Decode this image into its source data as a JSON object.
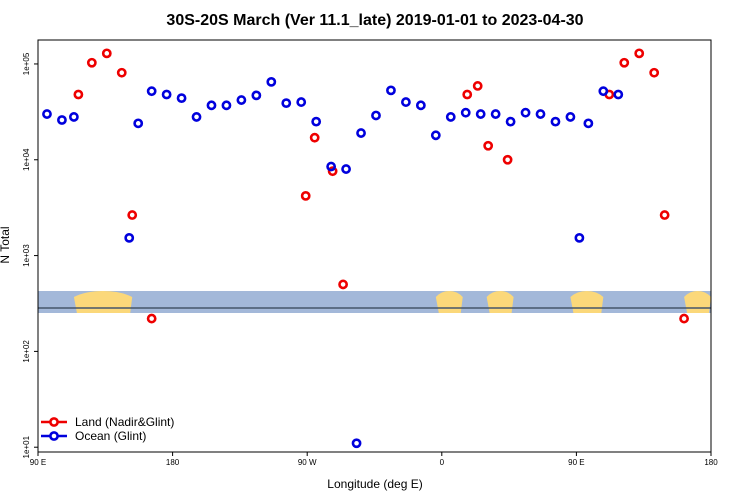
{
  "chart_data": {
    "type": "scatter",
    "title": "30S-20S March (Ver 11.1_late)   2019-01-01 to 2023-04-30",
    "xlabel": "Longitude (deg E)",
    "ylabel": "N Total",
    "x_scale": "longitude, 90E to 180 wrapping past 360",
    "y_scale": "log",
    "xlim": [
      90,
      540
    ],
    "ylim_log10": [
      0.95,
      5.25
    ],
    "x_ticks": [
      {
        "value": 90,
        "label": "90 E"
      },
      {
        "value": 180,
        "label": "180"
      },
      {
        "value": 270,
        "label": "90 W"
      },
      {
        "value": 360,
        "label": "0"
      },
      {
        "value": 450,
        "label": "90 E"
      },
      {
        "value": 540,
        "label": "180"
      }
    ],
    "y_ticks": [
      {
        "value": 10,
        "label": "1e+01"
      },
      {
        "value": 100,
        "label": "1e+02"
      },
      {
        "value": 1000,
        "label": "1e+03"
      },
      {
        "value": 10000,
        "label": "1e+04"
      },
      {
        "value": 100000,
        "label": "1e+05"
      }
    ],
    "colors": {
      "land": "#ee0000",
      "ocean": "#0000dd"
    },
    "legend": {
      "position": "bottom-left",
      "entries": [
        {
          "label": "Land (Nadir&Glint)",
          "series": "land"
        },
        {
          "label": "Ocean (Glint)",
          "series": "ocean"
        }
      ]
    },
    "series": [
      {
        "name": "Land (Nadir&Glint)",
        "key": "land",
        "points": [
          {
            "x": 117,
            "y": 48000
          },
          {
            "x": 126,
            "y": 103000
          },
          {
            "x": 136,
            "y": 129000
          },
          {
            "x": 146,
            "y": 81000
          },
          {
            "x": 153,
            "y": 2650
          },
          {
            "x": 166,
            "y": 220
          },
          {
            "x": 269,
            "y": 4200
          },
          {
            "x": 275,
            "y": 17000
          },
          {
            "x": 287,
            "y": 7600
          },
          {
            "x": 294,
            "y": 500
          },
          {
            "x": 377,
            "y": 48000
          },
          {
            "x": 384,
            "y": 59000
          },
          {
            "x": 391,
            "y": 14000
          },
          {
            "x": 404,
            "y": 10000
          },
          {
            "x": 472,
            "y": 48000
          },
          {
            "x": 482,
            "y": 103000
          },
          {
            "x": 492,
            "y": 129000
          },
          {
            "x": 502,
            "y": 81000
          },
          {
            "x": 509,
            "y": 2650
          },
          {
            "x": 522,
            "y": 220
          }
        ]
      },
      {
        "name": "Ocean (Glint)",
        "key": "ocean",
        "points": [
          {
            "x": 96,
            "y": 30000
          },
          {
            "x": 106,
            "y": 26000
          },
          {
            "x": 114,
            "y": 28000
          },
          {
            "x": 151,
            "y": 1530
          },
          {
            "x": 157,
            "y": 24000
          },
          {
            "x": 166,
            "y": 52000
          },
          {
            "x": 176,
            "y": 48000
          },
          {
            "x": 186,
            "y": 44000
          },
          {
            "x": 196,
            "y": 28000
          },
          {
            "x": 206,
            "y": 37000
          },
          {
            "x": 216,
            "y": 37000
          },
          {
            "x": 226,
            "y": 42000
          },
          {
            "x": 236,
            "y": 47000
          },
          {
            "x": 246,
            "y": 65000
          },
          {
            "x": 256,
            "y": 39000
          },
          {
            "x": 266,
            "y": 40000
          },
          {
            "x": 276,
            "y": 25000
          },
          {
            "x": 286,
            "y": 8500
          },
          {
            "x": 296,
            "y": 8000
          },
          {
            "x": 303,
            "y": 11
          },
          {
            "x": 306,
            "y": 19000
          },
          {
            "x": 316,
            "y": 29000
          },
          {
            "x": 326,
            "y": 53000
          },
          {
            "x": 336,
            "y": 40000
          },
          {
            "x": 346,
            "y": 37000
          },
          {
            "x": 356,
            "y": 18000
          },
          {
            "x": 366,
            "y": 28000
          },
          {
            "x": 376,
            "y": 31000
          },
          {
            "x": 386,
            "y": 30000
          },
          {
            "x": 396,
            "y": 30000
          },
          {
            "x": 406,
            "y": 25000
          },
          {
            "x": 416,
            "y": 31000
          },
          {
            "x": 426,
            "y": 30000
          },
          {
            "x": 436,
            "y": 25000
          },
          {
            "x": 446,
            "y": 28000
          },
          {
            "x": 452,
            "y": 1530
          },
          {
            "x": 458,
            "y": 24000
          },
          {
            "x": 468,
            "y": 52000
          },
          {
            "x": 478,
            "y": 48000
          }
        ]
      }
    ],
    "map_strip": {
      "ocean_color": "#a3b8d9",
      "land_color": "#fbd87a",
      "equator_line_color": "#44556b",
      "land_segments_lon": [
        [
          114,
          153
        ],
        [
          356,
          374
        ],
        [
          390,
          408
        ],
        [
          446,
          468
        ],
        [
          522,
          540
        ]
      ]
    }
  }
}
